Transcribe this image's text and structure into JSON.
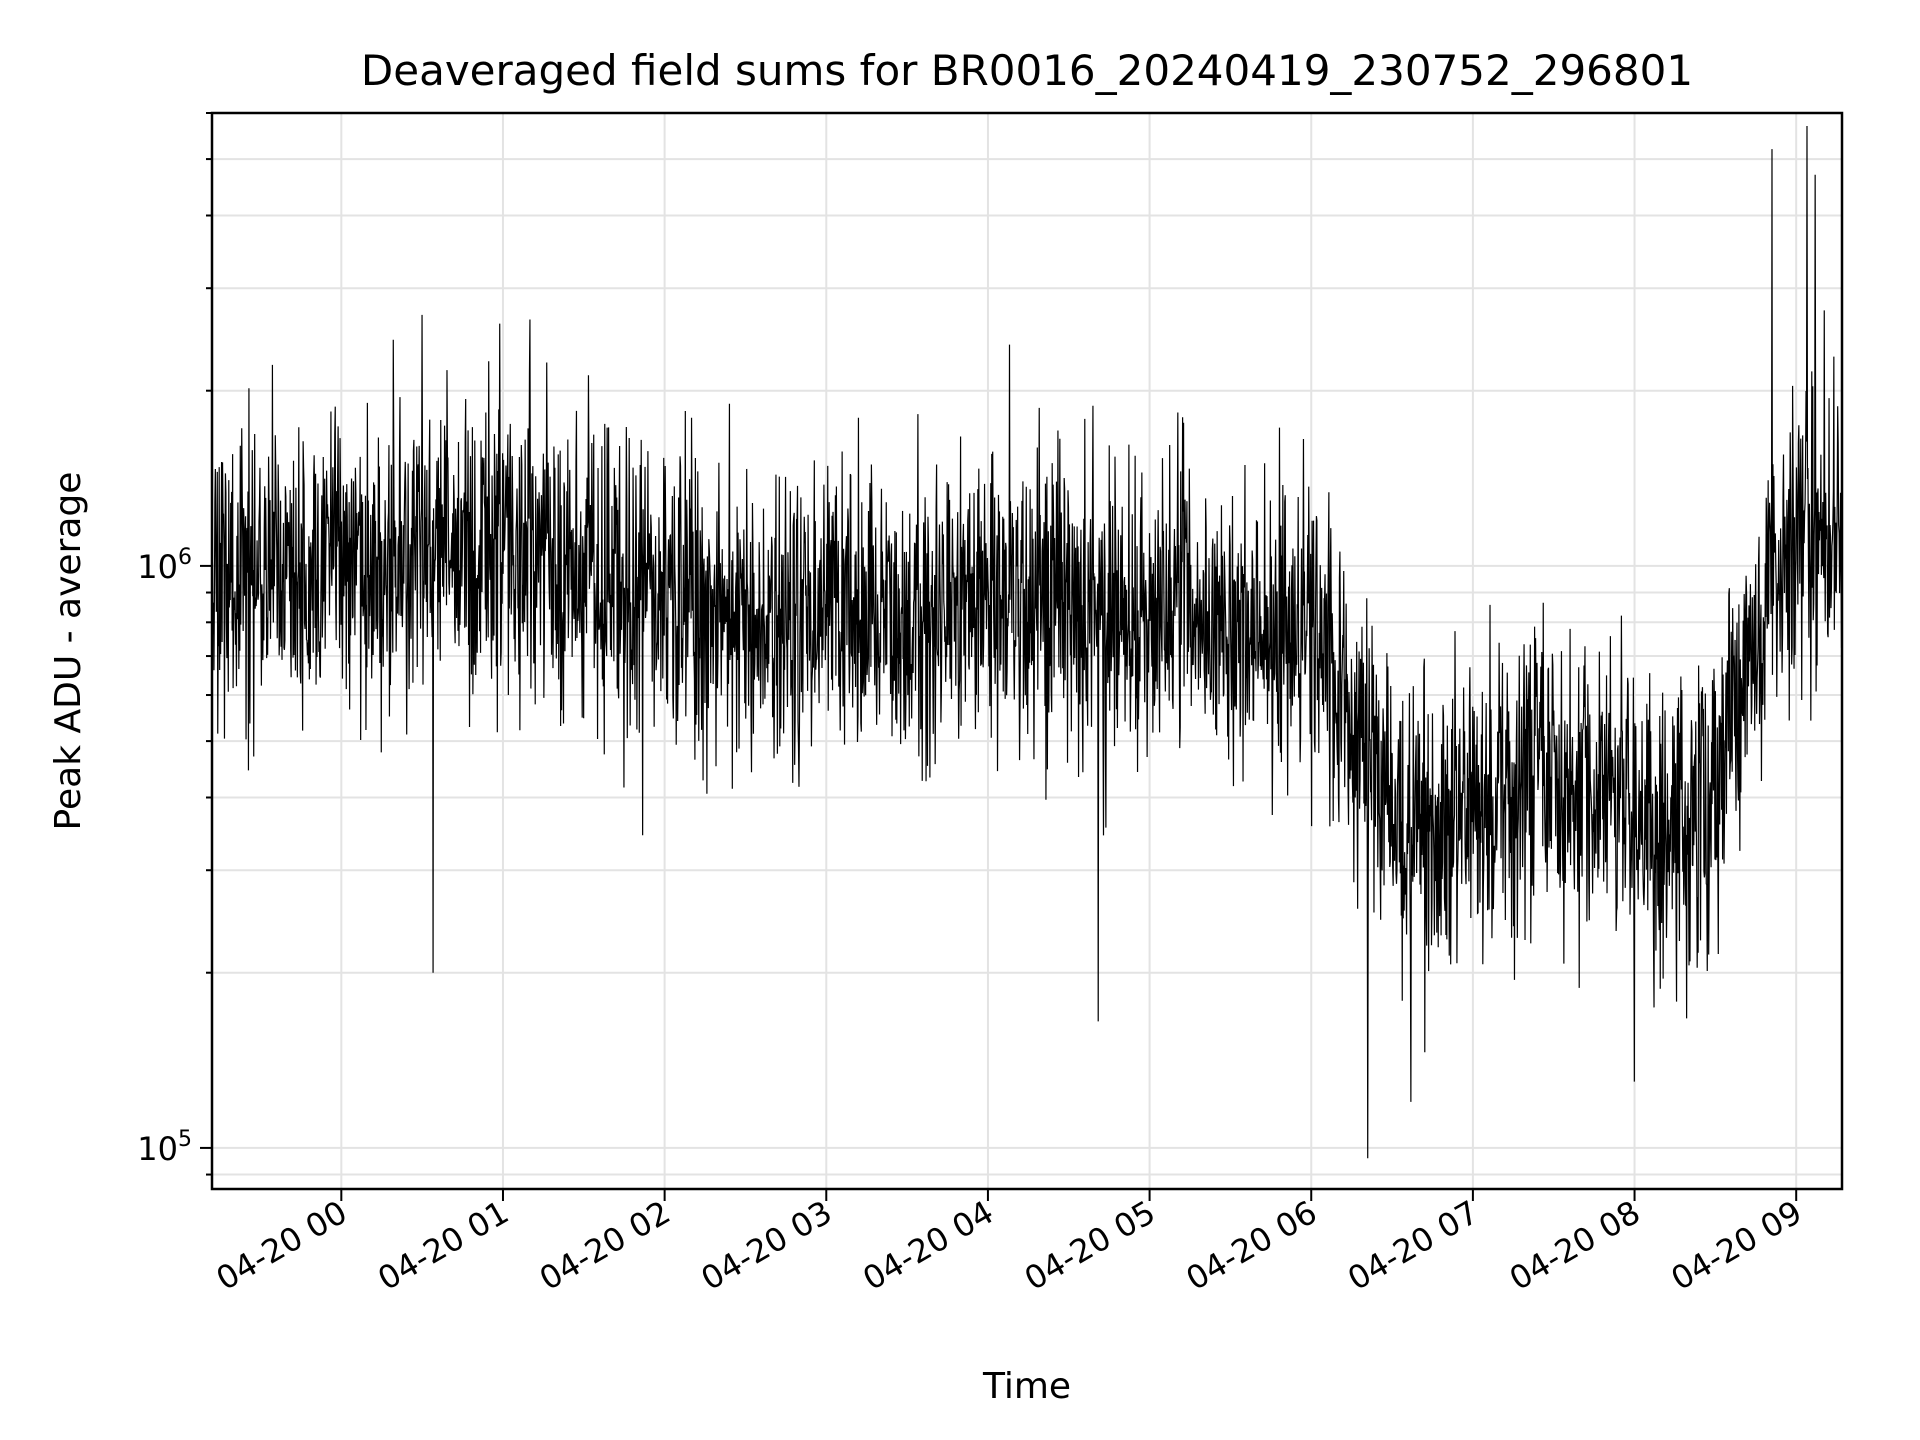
{
  "chart_data": {
    "type": "line",
    "title": "Deaveraged field sums for BR0016_20240419_230752_296801",
    "xlabel": "Time",
    "ylabel": "Peak ADU - average",
    "y_scale": "log",
    "xlim": [
      "2024-04-19 23:12",
      "2024-04-20 09:17"
    ],
    "ylim": [
      85000,
      6000000
    ],
    "grid": true,
    "x_ticks": [
      "04-20 00",
      "04-20 01",
      "04-20 02",
      "04-20 03",
      "04-20 04",
      "04-20 05",
      "04-20 06",
      "04-20 07",
      "04-20 08",
      "04-20 09"
    ],
    "x_tick_times": [
      "2024-04-20 00:00",
      "2024-04-20 01:00",
      "2024-04-20 02:00",
      "2024-04-20 03:00",
      "2024-04-20 04:00",
      "2024-04-20 05:00",
      "2024-04-20 06:00",
      "2024-04-20 07:00",
      "2024-04-20 08:00",
      "2024-04-20 09:00"
    ],
    "y_major_ticks": [
      {
        "value": 100000,
        "base": "10",
        "exp": "5"
      },
      {
        "value": 1000000,
        "base": "10",
        "exp": "6"
      }
    ],
    "series_color": "#000000",
    "series": [
      {
        "x": [
          "2024-04-19 23:12",
          "2024-04-19 23:30",
          "2024-04-19 23:45",
          "2024-04-20 00:00",
          "2024-04-20 00:15",
          "2024-04-20 00:30",
          "2024-04-20 00:45",
          "2024-04-20 01:00",
          "2024-04-20 01:15",
          "2024-04-20 01:30",
          "2024-04-20 01:45",
          "2024-04-20 02:00",
          "2024-04-20 02:15",
          "2024-04-20 02:30",
          "2024-04-20 02:45",
          "2024-04-20 03:00",
          "2024-04-20 03:15",
          "2024-04-20 03:30",
          "2024-04-20 03:45",
          "2024-04-20 04:00",
          "2024-04-20 04:15",
          "2024-04-20 04:30",
          "2024-04-20 04:45",
          "2024-04-20 05:00",
          "2024-04-20 05:15",
          "2024-04-20 05:30",
          "2024-04-20 05:45",
          "2024-04-20 06:00",
          "2024-04-20 06:10",
          "2024-04-20 06:20",
          "2024-04-20 06:30",
          "2024-04-20 06:45",
          "2024-04-20 07:00",
          "2024-04-20 07:15",
          "2024-04-20 07:30",
          "2024-04-20 07:45",
          "2024-04-20 08:00",
          "2024-04-20 08:15",
          "2024-04-20 08:30",
          "2024-04-20 08:40",
          "2024-04-20 08:50",
          "2024-04-20 09:00",
          "2024-04-20 09:17"
        ],
        "values": [
          950000,
          1000000,
          1000000,
          1050000,
          1000000,
          1050000,
          1100000,
          1100000,
          1050000,
          1000000,
          950000,
          900000,
          850000,
          800000,
          800000,
          850000,
          850000,
          800000,
          850000,
          900000,
          900000,
          900000,
          850000,
          850000,
          850000,
          800000,
          800000,
          750000,
          600000,
          450000,
          350000,
          350000,
          400000,
          420000,
          420000,
          400000,
          350000,
          350000,
          400000,
          600000,
          900000,
          1100000,
          1100000
        ],
        "spikes_up": [
          {
            "x": "2024-04-20 00:30",
            "value": 2700000
          },
          {
            "x": "2024-04-20 01:10",
            "value": 2650000
          },
          {
            "x": "2024-04-20 04:08",
            "value": 2400000
          },
          {
            "x": "2024-04-20 08:51",
            "value": 5200000
          },
          {
            "x": "2024-04-20 09:04",
            "value": 5700000
          },
          {
            "x": "2024-04-20 09:07",
            "value": 4700000
          }
        ],
        "spikes_down": [
          {
            "x": "2024-04-20 00:34",
            "value": 200000
          },
          {
            "x": "2024-04-20 04:41",
            "value": 165000
          },
          {
            "x": "2024-04-20 06:21",
            "value": 96000
          },
          {
            "x": "2024-04-20 06:37",
            "value": 120000
          },
          {
            "x": "2024-04-20 08:00",
            "value": 130000
          }
        ]
      }
    ]
  }
}
